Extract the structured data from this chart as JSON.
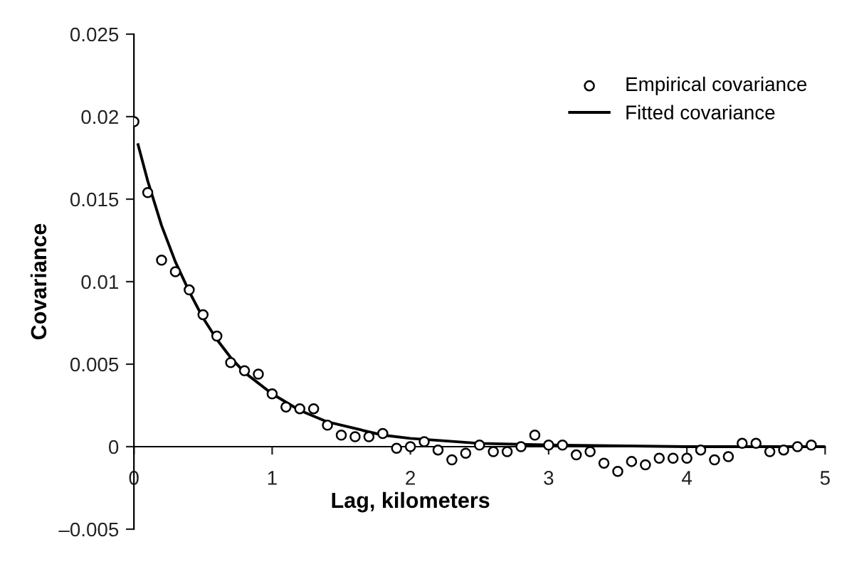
{
  "chart_data": {
    "type": "scatter",
    "xlabel": "Lag, kilometers",
    "ylabel": "Covariance",
    "xlim": [
      0,
      5
    ],
    "xticks": [
      0,
      1,
      2,
      3,
      4,
      5
    ],
    "ylim": [
      -0.005,
      0.025
    ],
    "yticks": [
      {
        "value": -0.005,
        "label": "–0.005"
      },
      0,
      0.005,
      0.01,
      0.015,
      0.02,
      0.025
    ],
    "legend": "top right",
    "grid": false,
    "series": [
      {
        "name": "Empirical covariance",
        "marker": "circle",
        "color": "#000000",
        "x": [
          0.0,
          0.1,
          0.2,
          0.3,
          0.4,
          0.5,
          0.6,
          0.7,
          0.8,
          0.9,
          1.0,
          1.1,
          1.2,
          1.3,
          1.4,
          1.5,
          1.6,
          1.7,
          1.8,
          1.9,
          2.0,
          2.1,
          2.2,
          2.3,
          2.4,
          2.5,
          2.6,
          2.7,
          2.8,
          2.9,
          3.0,
          3.1,
          3.2,
          3.3,
          3.4,
          3.5,
          3.6,
          3.7,
          3.8,
          3.9,
          4.0,
          4.1,
          4.2,
          4.3,
          4.4,
          4.5,
          4.6,
          4.7,
          4.8,
          4.9
        ],
        "values": [
          0.0197,
          0.0154,
          0.0113,
          0.0106,
          0.0095,
          0.008,
          0.0067,
          0.0051,
          0.0046,
          0.0044,
          0.0032,
          0.0024,
          0.0023,
          0.0023,
          0.0013,
          0.0007,
          0.0006,
          0.0006,
          0.0008,
          -0.0001,
          0.0,
          0.0003,
          -0.0002,
          -0.0008,
          -0.0004,
          0.0001,
          -0.0003,
          -0.0003,
          0.0,
          0.0007,
          0.0001,
          0.0001,
          -0.0005,
          -0.0003,
          -0.001,
          -0.0015,
          -0.0009,
          -0.0011,
          -0.0007,
          -0.0007,
          -0.0007,
          -0.0002,
          -0.0008,
          -0.0006,
          0.0002,
          0.0002,
          -0.0003,
          -0.0002,
          0.0,
          0.0001
        ]
      },
      {
        "name": "Fitted covariance",
        "type": "line",
        "marker": "none",
        "line_style": "solid",
        "color": "#000000",
        "x": [
          0.03,
          0.1,
          0.2,
          0.3,
          0.4,
          0.5,
          0.6,
          0.7,
          0.8,
          1.0,
          1.2,
          1.4,
          1.6,
          1.8,
          2.0,
          2.5,
          3.0,
          4.0,
          5.0
        ],
        "values": [
          0.0183,
          0.0161,
          0.0134,
          0.0112,
          0.0094,
          0.0078,
          0.0065,
          0.0054,
          0.0045,
          0.0032,
          0.0022,
          0.0015,
          0.0011,
          0.0007,
          0.0005,
          0.0002,
          0.0001,
          0.0,
          0.0
        ]
      }
    ]
  }
}
